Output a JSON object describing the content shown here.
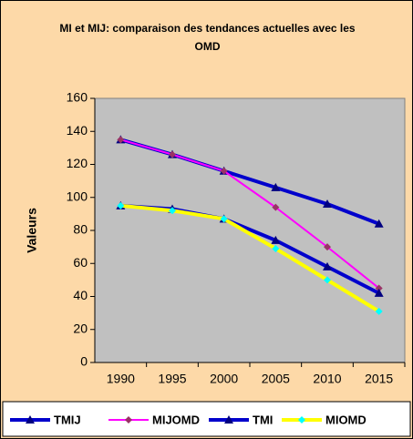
{
  "chart_data": {
    "type": "line",
    "title": "MI et MIJ: comparaison des tendances actuelles avec les OMD",
    "y_label": "Valeurs",
    "categories": [
      "1990",
      "1995",
      "2000",
      "2005",
      "2010",
      "2015"
    ],
    "series": [
      {
        "name": "TMIJ",
        "color": "#0000cc",
        "marker": "triangle",
        "marker_color": "#000080",
        "values": [
          135,
          126,
          116,
          106,
          96,
          84
        ]
      },
      {
        "name": "MIJOMD",
        "color": "#ff00ff",
        "marker": "diamond",
        "marker_color": "#993366",
        "values": [
          135,
          126,
          116,
          94,
          70,
          45
        ]
      },
      {
        "name": "TMI",
        "color": "#0000cc",
        "marker": "triangle",
        "marker_color": "#000080",
        "values": [
          95,
          93,
          87,
          74,
          58,
          42
        ]
      },
      {
        "name": "MIOMD",
        "color": "#ffff00",
        "marker": "diamond",
        "marker_color": "#00ffff",
        "values": [
          95,
          92,
          87,
          69,
          50,
          31
        ]
      }
    ],
    "ylim": [
      0,
      160
    ],
    "yticks": [
      0,
      20,
      40,
      60,
      80,
      100,
      120,
      140,
      160
    ],
    "grid": false
  }
}
